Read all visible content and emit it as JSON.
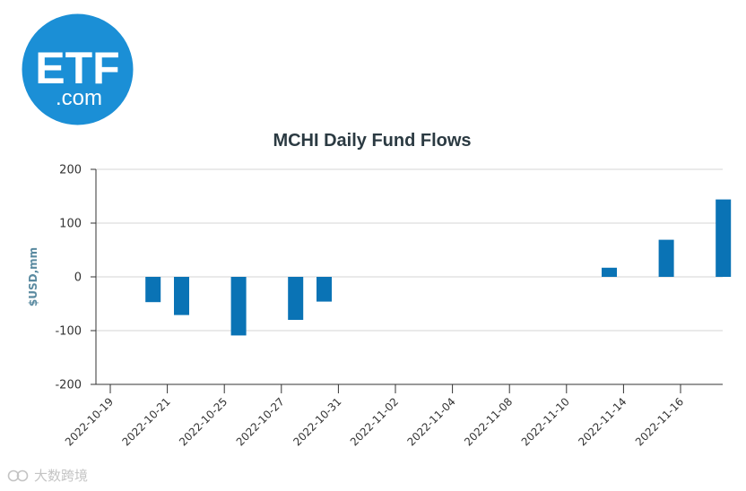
{
  "logo": {
    "main_text": "ETF",
    "sub_text": ".com",
    "color": "#1b8fd6"
  },
  "watermark": {
    "text": "大数跨境"
  },
  "chart_data": {
    "type": "bar",
    "title": "MCHI Daily Fund Flows",
    "xlabel": "",
    "ylabel": "$USD,mm",
    "ylim": [
      -200,
      200
    ],
    "yticks": [
      200,
      100,
      0,
      -100,
      -200
    ],
    "ytick_labels": [
      "200",
      "100",
      "0",
      "-100",
      "-200"
    ],
    "xtick_labels": [
      "2022-10-19",
      "2022-10-21",
      "2022-10-25",
      "2022-10-27",
      "2022-10-31",
      "2022-11-02",
      "2022-11-04",
      "2022-11-08",
      "2022-11-10",
      "2022-11-14",
      "2022-11-16"
    ],
    "categories": [
      "2022-10-19",
      "2022-10-20",
      "2022-10-21",
      "2022-10-24",
      "2022-10-25",
      "2022-10-26",
      "2022-10-27",
      "2022-10-28",
      "2022-10-31",
      "2022-11-01",
      "2022-11-02",
      "2022-11-03",
      "2022-11-04",
      "2022-11-07",
      "2022-11-08",
      "2022-11-09",
      "2022-11-10",
      "2022-11-11",
      "2022-11-14",
      "2022-11-15",
      "2022-11-16",
      "2022-11-17"
    ],
    "values": [
      0,
      -47,
      -71,
      0,
      -109,
      0,
      -80,
      -46,
      0,
      0,
      0,
      0,
      0,
      0,
      0,
      0,
      0,
      17,
      0,
      69,
      0,
      144
    ],
    "bar_color": "#0a73b5",
    "grid": true,
    "legend": "none"
  }
}
